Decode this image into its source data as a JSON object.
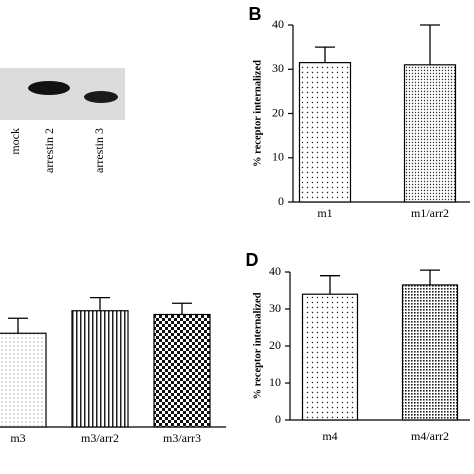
{
  "blot": {
    "lanes": [
      "mock",
      "arrestin 2",
      "arrestin 3"
    ]
  },
  "chart_data": [
    {
      "type": "bar",
      "panel": "B",
      "y_label": "% receptor internalized",
      "categories": [
        "m1",
        "m1/arr2"
      ],
      "values": [
        31.5,
        31
      ],
      "errors": [
        3.5,
        9
      ],
      "patterns": [
        "dots",
        "fine"
      ],
      "ylim": [
        0,
        40
      ],
      "yticks": [
        0,
        10,
        20,
        30,
        40
      ]
    },
    {
      "type": "bar",
      "categories": [
        "m3",
        "m3/arr2",
        "m3/arr3"
      ],
      "values": [
        25,
        31,
        30
      ],
      "errors": [
        4,
        3.5,
        3
      ],
      "patterns": [
        "light",
        "stripes",
        "check"
      ],
      "ylim": [
        0,
        40
      ]
    },
    {
      "type": "bar",
      "panel": "D",
      "y_label": "% receptor internalized",
      "categories": [
        "m4",
        "m4/arr2"
      ],
      "values": [
        34,
        36.5
      ],
      "errors": [
        5,
        4
      ],
      "patterns": [
        "dots",
        "grid"
      ],
      "ylim": [
        0,
        40
      ],
      "yticks": [
        0,
        10,
        20,
        30,
        40
      ]
    }
  ]
}
